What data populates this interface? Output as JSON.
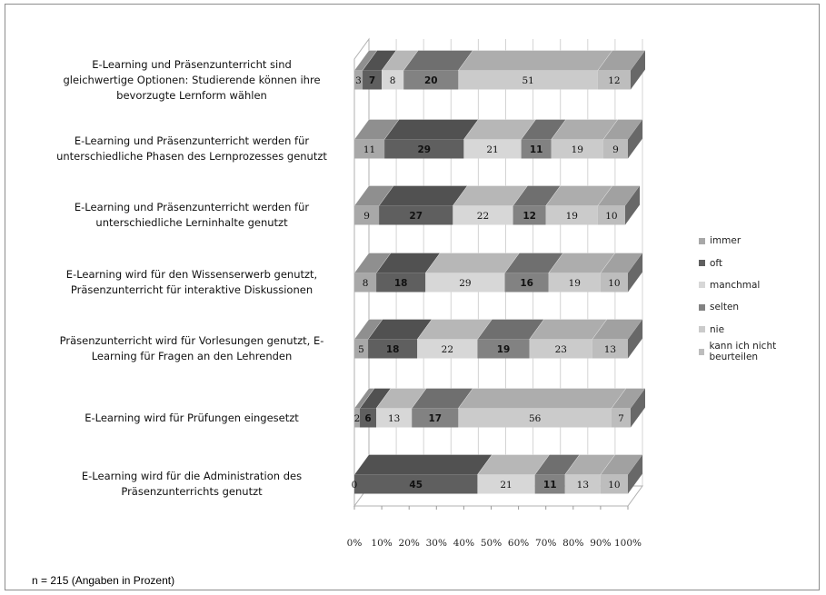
{
  "chart_data": {
    "type": "bar",
    "orientation": "horizontal",
    "stacked": "100%",
    "three_d": true,
    "categories": [
      "E-Learning und Präsenzunterricht sind gleichwertige Optionen: Studierende können ihre bevorzugte Lernform wählen",
      "E-Learning und Präsenzunterricht werden für unterschiedliche Phasen des Lernprozesses genutzt",
      "E-Learning und Präsenzunterricht werden für unterschiedliche Lerninhalte genutzt",
      "E-Learning wird für den Wissenserwerb genutzt, Präsenzunterricht für interaktive Diskussionen",
      "Präsenzunterricht wird für Vorlesungen genutzt, E-Learning für Fragen an den Lehrenden",
      "E-Learning wird für Prüfungen eingesetzt",
      "E-Learning wird für die Administration des Präsenzunterrichts genutzt"
    ],
    "category_lines": [
      [
        "E-Learning und Präsenzunterricht sind",
        "gleichwertige Optionen: Studierende können ihre",
        "bevorzugte Lernform wählen"
      ],
      [
        "E-Learning und Präsenzunterricht werden für",
        "unterschiedliche Phasen des Lernprozesses genutzt"
      ],
      [
        "E-Learning und Präsenzunterricht werden für",
        "unterschiedliche Lerninhalte genutzt"
      ],
      [
        "E-Learning wird für den Wissenserwerb genutzt,",
        "Präsenzunterricht für interaktive Diskussionen"
      ],
      [
        "Präsenzunterricht wird für Vorlesungen genutzt, E-",
        "Learning für Fragen an den Lehrenden"
      ],
      [
        "E-Learning wird für Prüfungen eingesetzt"
      ],
      [
        "E-Learning wird für die Administration des",
        "Präsenzunterrichts genutzt"
      ]
    ],
    "series": [
      {
        "name": "immer",
        "values": [
          3,
          11,
          9,
          8,
          5,
          2,
          0
        ],
        "color": "#a8a8a8"
      },
      {
        "name": "oft",
        "values": [
          7,
          29,
          27,
          18,
          18,
          6,
          45
        ],
        "color": "#5f5f5f"
      },
      {
        "name": "manchmal",
        "values": [
          8,
          21,
          22,
          29,
          22,
          13,
          21
        ],
        "color": "#d7d7d7"
      },
      {
        "name": "selten",
        "values": [
          20,
          11,
          12,
          16,
          19,
          17,
          11
        ],
        "color": "#828282"
      },
      {
        "name": "nie",
        "values": [
          51,
          19,
          19,
          19,
          23,
          56,
          13
        ],
        "color": "#cbcbcb"
      },
      {
        "name": "kann ich nicht beurteilen",
        "values": [
          12,
          9,
          10,
          10,
          13,
          7,
          10
        ],
        "color": "#bdbdbd"
      }
    ],
    "xlim": [
      0,
      100
    ],
    "x_ticks": [
      "0%",
      "10%",
      "20%",
      "30%",
      "40%",
      "50%",
      "60%",
      "70%",
      "80%",
      "90%",
      "100%"
    ],
    "grid": true,
    "legend_position": "right",
    "footnote": "n = 215 (Angaben in Prozent)"
  }
}
